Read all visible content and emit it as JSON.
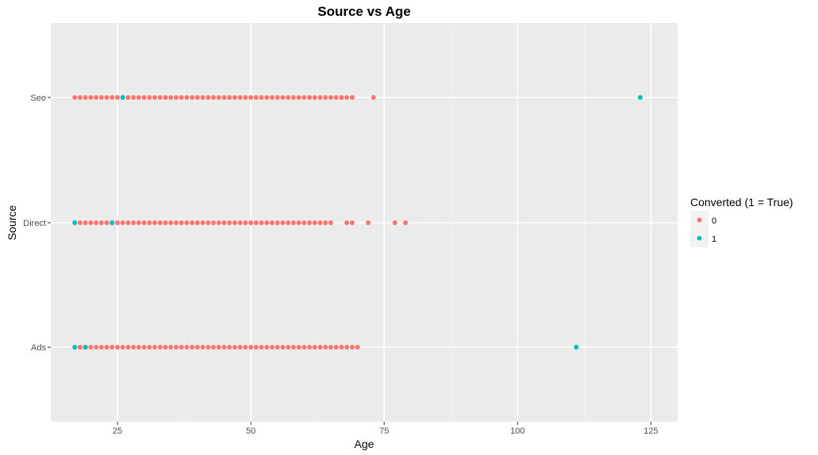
{
  "chart_data": {
    "type": "scatter",
    "title": "Source vs Age",
    "xlabel": "Age",
    "ylabel": "Source",
    "xlim": [
      12.5,
      130
    ],
    "x_ticks": [
      25,
      50,
      75,
      100,
      125
    ],
    "categories": [
      "Ads",
      "Direct",
      "Seo"
    ],
    "grid": true,
    "legend": {
      "title": "Converted (1 = True)",
      "placement": "right",
      "entries": [
        "0",
        "1"
      ]
    },
    "colors": {
      "0": "#F8766D",
      "1": "#00BFC4",
      "panel": "#EBEBEB",
      "grid": "#FFFFFF"
    },
    "series": [
      {
        "name": "0",
        "points": [
          {
            "category": "Seo",
            "x_range": [
              17,
              69
            ],
            "extra_x": [
              73
            ]
          },
          {
            "category": "Direct",
            "x_range": [
              17,
              65
            ],
            "extra_x": [
              68,
              69,
              72,
              77,
              79
            ]
          },
          {
            "category": "Ads",
            "x_range": [
              17,
              70
            ],
            "extra_x": []
          }
        ]
      },
      {
        "name": "1",
        "points": [
          {
            "category": "Seo",
            "x": [
              26,
              123
            ]
          },
          {
            "category": "Direct",
            "x": [
              17,
              24
            ]
          },
          {
            "category": "Ads",
            "x": [
              17,
              19,
              111
            ]
          }
        ]
      }
    ]
  }
}
